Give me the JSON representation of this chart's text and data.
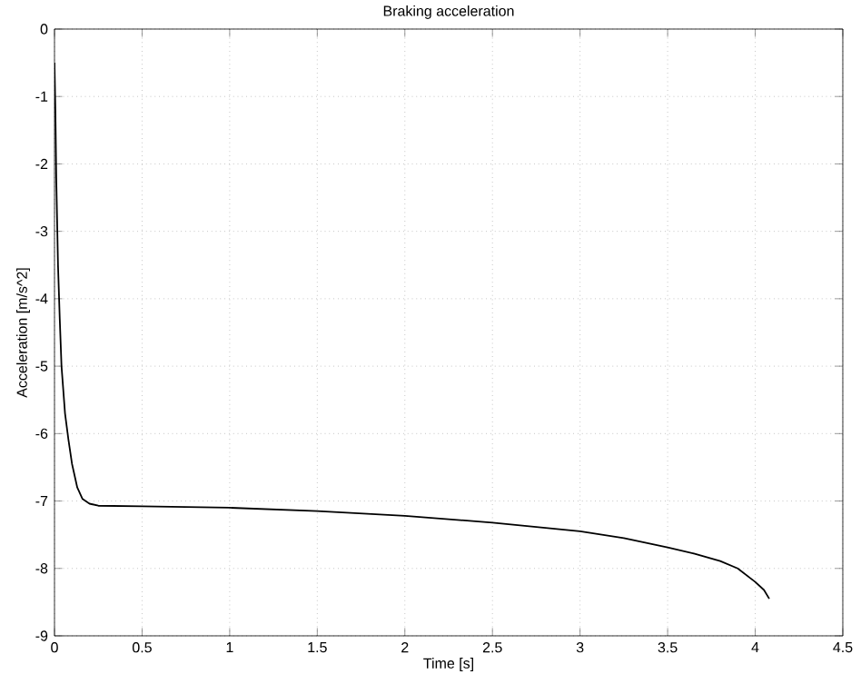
{
  "chart_data": {
    "type": "line",
    "title": "Braking acceleration",
    "xlabel": "Time [s]",
    "ylabel": "Acceleration [m/s^2]",
    "xlim": [
      0,
      4.5
    ],
    "ylim": [
      -9,
      0
    ],
    "xticks": [
      0,
      0.5,
      1,
      1.5,
      2,
      2.5,
      3,
      3.5,
      4,
      4.5
    ],
    "yticks": [
      -9,
      -8,
      -7,
      -6,
      -5,
      -4,
      -3,
      -2,
      -1,
      0
    ],
    "grid": true,
    "series": [
      {
        "color": "#000000",
        "x": [
          0,
          0.005,
          0.01,
          0.02,
          0.03,
          0.04,
          0.06,
          0.08,
          0.1,
          0.13,
          0.16,
          0.2,
          0.25,
          0.5,
          1,
          1.5,
          2,
          2.5,
          3,
          3.25,
          3.5,
          3.65,
          3.8,
          3.9,
          4,
          4.05,
          4.08
        ],
        "values": [
          -0.5,
          -1.2,
          -2.2,
          -3.5,
          -4.3,
          -5.0,
          -5.7,
          -6.1,
          -6.45,
          -6.8,
          -6.97,
          -7.04,
          -7.07,
          -7.08,
          -7.1,
          -7.15,
          -7.22,
          -7.32,
          -7.45,
          -7.55,
          -7.69,
          -7.78,
          -7.89,
          -8.0,
          -8.2,
          -8.32,
          -8.45
        ]
      }
    ]
  }
}
